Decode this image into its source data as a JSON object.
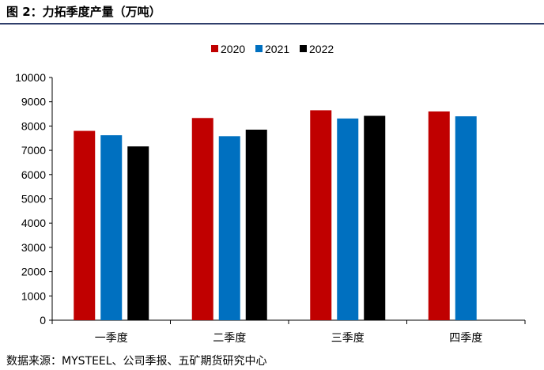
{
  "header": {
    "title": "图 2：力拓季度产量（万吨）"
  },
  "footer": {
    "source": "数据来源：MYSTEEL、公司季报、五矿期货研究中心"
  },
  "chart_data": {
    "type": "bar",
    "title": "",
    "xlabel": "",
    "ylabel": "",
    "categories": [
      "一季度",
      "二季度",
      "三季度",
      "四季度"
    ],
    "series": [
      {
        "name": "2020",
        "color": "#c00000",
        "values": [
          7800,
          8330,
          8650,
          8600
        ]
      },
      {
        "name": "2021",
        "color": "#0070c0",
        "values": [
          7620,
          7580,
          8310,
          8400
        ]
      },
      {
        "name": "2022",
        "color": "#000000",
        "values": [
          7160,
          7850,
          8420,
          null
        ]
      }
    ],
    "ylim": [
      0,
      10000
    ],
    "yticks": [
      0,
      1000,
      2000,
      3000,
      4000,
      5000,
      6000,
      7000,
      8000,
      9000,
      10000
    ],
    "grid": false,
    "legend_position": "top-center"
  }
}
